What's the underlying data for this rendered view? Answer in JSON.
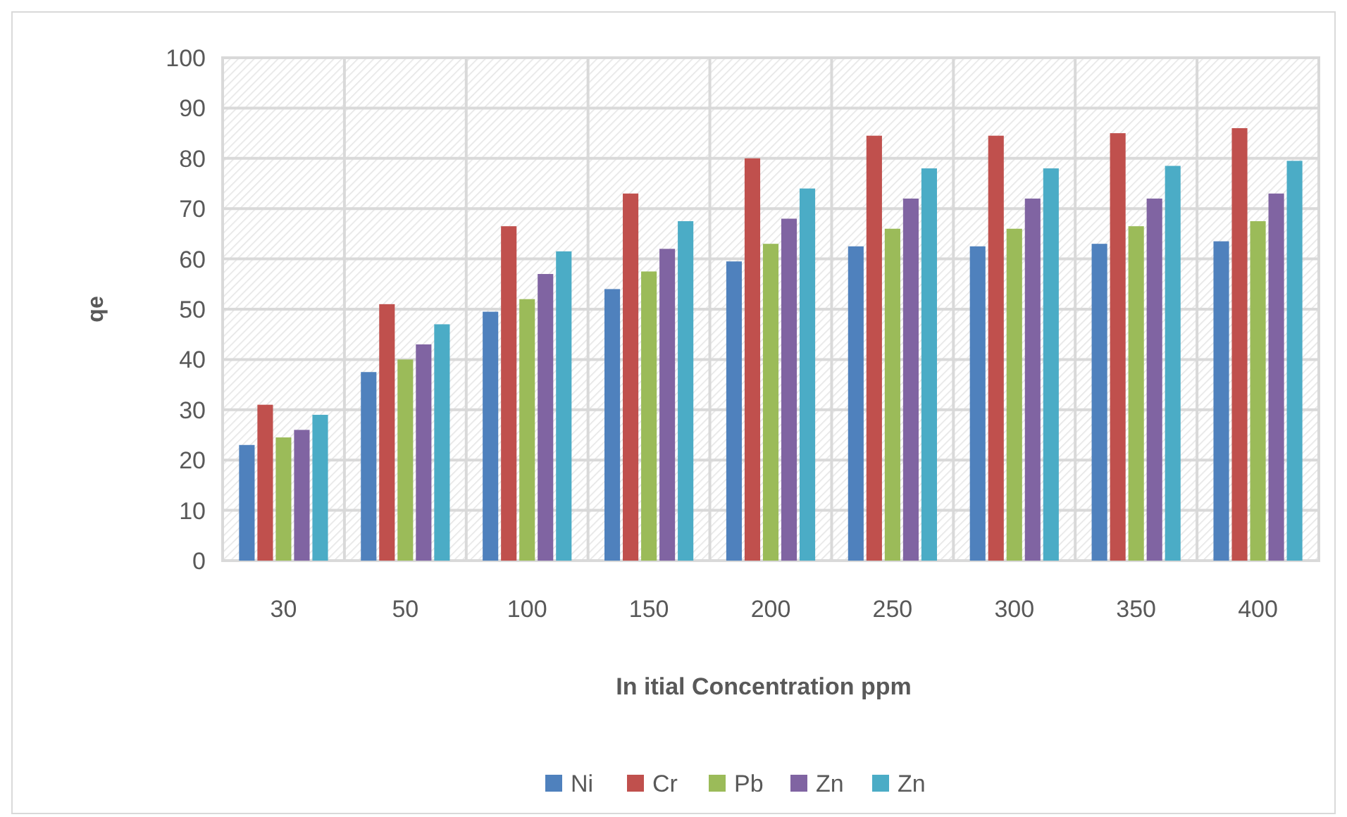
{
  "chart_data": {
    "type": "bar",
    "xlabel": "In itial Concentration ppm",
    "ylabel": "qe",
    "categories": [
      "30",
      "50",
      "100",
      "150",
      "200",
      "250",
      "300",
      "350",
      "400"
    ],
    "series": [
      {
        "name": "Ni",
        "color": "#4f81bd",
        "values": [
          23,
          37.5,
          49.5,
          54,
          59.5,
          62.5,
          62.5,
          63,
          63.5
        ]
      },
      {
        "name": "Cr",
        "color": "#c0504d",
        "values": [
          31,
          51,
          66.5,
          73,
          80,
          84.5,
          84.5,
          85,
          86
        ]
      },
      {
        "name": "Pb",
        "color": "#9bbb59",
        "values": [
          24.5,
          40,
          52,
          57.5,
          63,
          66,
          66,
          66.5,
          67.5
        ]
      },
      {
        "name": "Zn",
        "color": "#8064a2",
        "values": [
          26,
          43,
          57,
          62,
          68,
          72,
          72,
          72,
          73
        ]
      },
      {
        "name": "Zn",
        "color": "#4bacc6",
        "values": [
          29,
          47,
          61.5,
          67.5,
          74,
          78,
          78,
          78.5,
          79.5
        ]
      }
    ],
    "ylim": [
      0,
      100
    ],
    "yticks": [
      0,
      10,
      20,
      30,
      40,
      50,
      60,
      70,
      80,
      90,
      100
    ],
    "grid": true,
    "legend": "bottom"
  }
}
